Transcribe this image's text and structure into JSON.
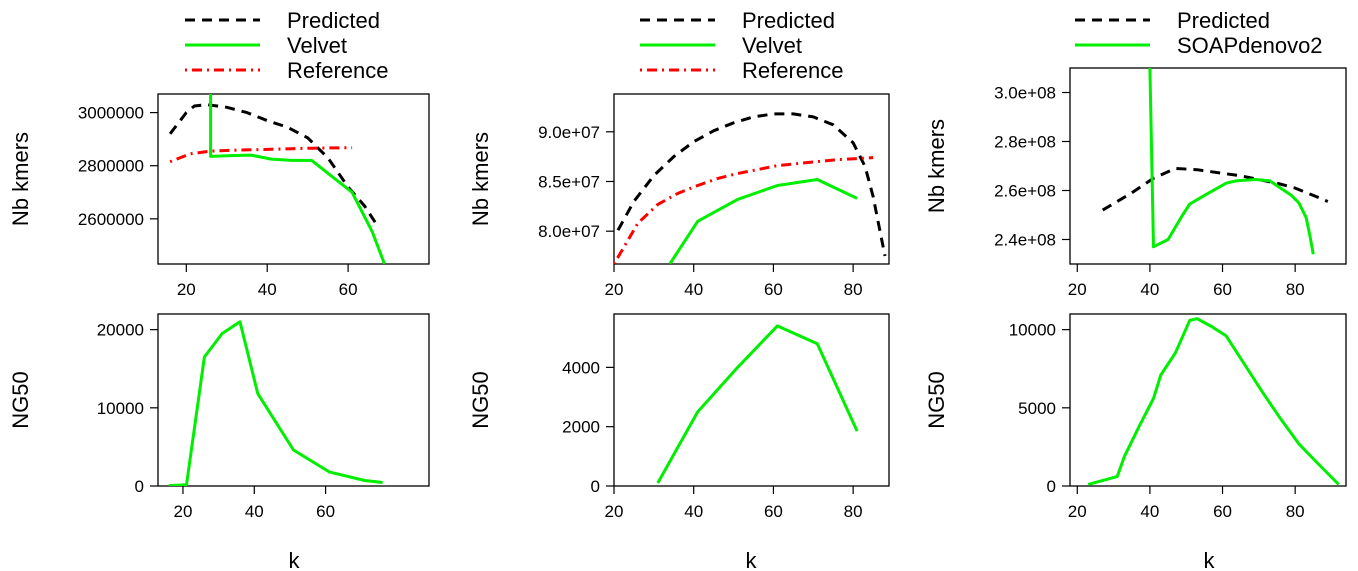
{
  "figure": {
    "legends": [
      {
        "entries": [
          {
            "label": "Predicted",
            "color": "#000000",
            "dash": "dashed"
          },
          {
            "label": "Velvet",
            "color": "#00ee00",
            "dash": "solid"
          },
          {
            "label": "Reference",
            "color": "#ff0000",
            "dash": "dotdash"
          }
        ]
      },
      {
        "entries": [
          {
            "label": "Predicted",
            "color": "#000000",
            "dash": "dashed"
          },
          {
            "label": "Velvet",
            "color": "#00ee00",
            "dash": "solid"
          },
          {
            "label": "Reference",
            "color": "#ff0000",
            "dash": "dotdash"
          }
        ]
      },
      {
        "entries": [
          {
            "label": "Predicted",
            "color": "#000000",
            "dash": "dashed"
          },
          {
            "label": "SOAPdenovo2",
            "color": "#00ee00",
            "dash": "solid"
          }
        ]
      }
    ],
    "xlabels": [
      "k",
      "k",
      "k"
    ]
  },
  "chart_data": [
    {
      "type": "line",
      "xlim": [
        13,
        80
      ],
      "ylim": [
        2430000,
        3070000
      ],
      "ylabel": "Nb kmers",
      "xlabel": "",
      "xticks": [
        20,
        40,
        60
      ],
      "xtick_labels": [
        "20",
        "40",
        "60"
      ],
      "yticks": [
        2600000,
        2800000,
        3000000
      ],
      "ytick_labels": [
        "2600000",
        "2800000",
        "3000000"
      ],
      "series": [
        {
          "name": "Predicted",
          "color": "#000000",
          "dash": "dashed",
          "x": [
            16,
            18,
            20,
            22,
            25,
            30,
            35,
            40,
            45,
            50,
            55,
            60,
            64,
            67
          ],
          "y": [
            2920000,
            2960000,
            3000000,
            3025000,
            3030000,
            3020000,
            3000000,
            2970000,
            2945000,
            2905000,
            2830000,
            2720000,
            2650000,
            2580000
          ]
        },
        {
          "name": "Velvet",
          "color": "#00ee00",
          "dash": "solid",
          "x": [
            26,
            26,
            31,
            36,
            41,
            46,
            51,
            61,
            66,
            69
          ],
          "y": [
            3070000,
            2835000,
            2838000,
            2840000,
            2825000,
            2820000,
            2820000,
            2700000,
            2550000,
            2430000
          ]
        },
        {
          "name": "Reference",
          "color": "#ff0000",
          "dash": "dotdash",
          "x": [
            16,
            21,
            26,
            31,
            36,
            41,
            46,
            51,
            56,
            61
          ],
          "y": [
            2815000,
            2845000,
            2855000,
            2858000,
            2860000,
            2862000,
            2864000,
            2866000,
            2867000,
            2868000
          ]
        }
      ]
    },
    {
      "type": "line",
      "xlim": [
        13,
        89
      ],
      "ylim": [
        0,
        22000
      ],
      "ylabel": "NG50",
      "xlabel": "k",
      "xticks": [
        20,
        40,
        60
      ],
      "xtick_labels": [
        "20",
        "40",
        "60"
      ],
      "yticks": [
        0,
        10000,
        20000
      ],
      "ytick_labels": [
        "0",
        "10000",
        "20000"
      ],
      "series": [
        {
          "name": "Velvet",
          "color": "#00ee00",
          "dash": "solid",
          "x": [
            16,
            21,
            26,
            31,
            36,
            41,
            51,
            61,
            71,
            76
          ],
          "y": [
            50,
            150,
            16500,
            19500,
            21000,
            11800,
            4600,
            1800,
            700,
            450
          ]
        }
      ]
    },
    {
      "type": "line",
      "xlim": [
        20,
        89
      ],
      "ylim": [
        76700000,
        93800000
      ],
      "ylabel": "Nb kmers",
      "xlabel": "",
      "xticks": [
        20,
        40,
        60,
        80
      ],
      "xtick_labels": [
        "20",
        "40",
        "60",
        "80"
      ],
      "yticks": [
        80000000,
        85000000,
        90000000
      ],
      "ytick_labels": [
        "8.0e+07",
        "8.5e+07",
        "9.0e+07"
      ],
      "series": [
        {
          "name": "Predicted",
          "color": "#000000",
          "dash": "dashed",
          "x": [
            21,
            25,
            30,
            35,
            40,
            45,
            50,
            55,
            60,
            65,
            70,
            75,
            80,
            83,
            85,
            87,
            88
          ],
          "y": [
            80100000,
            83000000,
            85600000,
            87500000,
            89000000,
            90100000,
            90900000,
            91500000,
            91800000,
            91800000,
            91500000,
            90700000,
            88900000,
            86500000,
            83500000,
            79500000,
            77500000
          ]
        },
        {
          "name": "Velvet",
          "color": "#00ee00",
          "dash": "solid",
          "x": [
            34,
            41,
            51,
            61,
            71,
            81
          ],
          "y": [
            76700000,
            81000000,
            83200000,
            84600000,
            85200000,
            83300000
          ]
        },
        {
          "name": "Reference",
          "color": "#ff0000",
          "dash": "dotdash",
          "x": [
            20,
            26,
            31,
            36,
            41,
            46,
            51,
            56,
            61,
            66,
            71,
            76,
            81,
            85
          ],
          "y": [
            76700000,
            80800000,
            82700000,
            83800000,
            84600000,
            85300000,
            85800000,
            86200000,
            86600000,
            86800000,
            87000000,
            87200000,
            87300000,
            87400000
          ]
        }
      ]
    },
    {
      "type": "line",
      "xlim": [
        20,
        89
      ],
      "ylim": [
        0,
        5800
      ],
      "ylabel": "NG50",
      "xlabel": "k",
      "xticks": [
        20,
        40,
        60,
        80
      ],
      "xtick_labels": [
        "20",
        "40",
        "60",
        "80"
      ],
      "yticks": [
        0,
        2000,
        4000
      ],
      "ytick_labels": [
        "0",
        "2000",
        "4000"
      ],
      "series": [
        {
          "name": "Velvet",
          "color": "#00ee00",
          "dash": "solid",
          "x": [
            31,
            41,
            51,
            61,
            71,
            81
          ],
          "y": [
            100,
            2500,
            4000,
            5400,
            4800,
            1850
          ]
        }
      ]
    },
    {
      "type": "line",
      "xlim": [
        18,
        94
      ],
      "ylim": [
        230000000,
        310000000
      ],
      "ylabel": "Nb kmers",
      "xlabel": "",
      "xticks": [
        20,
        40,
        60,
        80
      ],
      "xtick_labels": [
        "20",
        "40",
        "60",
        "80"
      ],
      "yticks": [
        240000000,
        260000000,
        280000000,
        300000000
      ],
      "ytick_labels": [
        "2.4e+08",
        "2.6e+08",
        "2.8e+08",
        "3.0e+08"
      ],
      "series": [
        {
          "name": "Predicted",
          "color": "#000000",
          "dash": "dashed",
          "x": [
            27,
            35,
            41,
            47,
            53,
            60,
            65,
            70,
            75,
            80,
            85,
            89
          ],
          "y": [
            252000000,
            259000000,
            265000000,
            269000000,
            268500000,
            267000000,
            266000000,
            264500000,
            263000000,
            261000000,
            258000000,
            255500000
          ]
        },
        {
          "name": "SOAPdenovo2",
          "color": "#00ee00",
          "dash": "solid",
          "x": [
            40,
            41,
            45,
            49,
            51,
            55,
            61,
            64,
            69,
            73,
            76,
            79,
            81,
            83,
            84,
            85
          ],
          "y": [
            310000000,
            237000000,
            240000000,
            250000000,
            254500000,
            258000000,
            263000000,
            264000000,
            264500000,
            264000000,
            261000000,
            258000000,
            255000000,
            249000000,
            242000000,
            234000000
          ]
        }
      ]
    },
    {
      "type": "line",
      "xlim": [
        18,
        94
      ],
      "ylim": [
        0,
        11000
      ],
      "ylabel": "NG50",
      "xlabel": "k",
      "xticks": [
        20,
        40,
        60,
        80
      ],
      "xtick_labels": [
        "20",
        "40",
        "60",
        "80"
      ],
      "yticks": [
        0,
        5000,
        10000
      ],
      "ytick_labels": [
        "0",
        "5000",
        "10000"
      ],
      "series": [
        {
          "name": "SOAPdenovo2",
          "color": "#00ee00",
          "dash": "solid",
          "x": [
            23,
            31,
            33,
            37,
            41,
            43,
            47,
            51,
            53,
            57,
            61,
            66,
            71,
            76,
            81,
            86,
            92
          ],
          "y": [
            100,
            600,
            1900,
            3800,
            5600,
            7100,
            8500,
            10600,
            10700,
            10200,
            9600,
            7800,
            6000,
            4300,
            2700,
            1500,
            100
          ]
        }
      ]
    }
  ]
}
